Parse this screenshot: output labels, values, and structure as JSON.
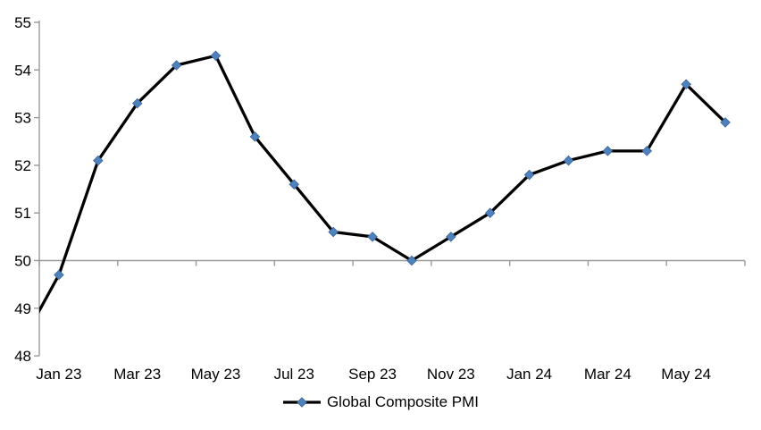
{
  "chart_data": {
    "type": "line",
    "title": "",
    "series": [
      {
        "name": "Global Composite PMI",
        "x": [
          "Dec 22",
          "Jan 23",
          "Feb 23",
          "Mar 23",
          "Apr 23",
          "May 23",
          "Jun 23",
          "Jul 23",
          "Aug 23",
          "Sep 23",
          "Oct 23",
          "Nov 23",
          "Dec 23",
          "Jan 24",
          "Feb 24",
          "Mar 24",
          "Apr 24",
          "May 24",
          "Jun 24"
        ],
        "values": [
          48.2,
          49.7,
          52.1,
          53.3,
          54.1,
          54.3,
          52.6,
          51.6,
          50.6,
          50.5,
          50.0,
          50.5,
          51.0,
          51.8,
          52.1,
          52.3,
          52.3,
          53.7,
          52.9
        ]
      }
    ],
    "x_tick_labels": [
      "Jan 23",
      "Mar 23",
      "May 23",
      "Jul 23",
      "Sep 23",
      "Nov 23",
      "Jan 24",
      "Mar 24",
      "May 24"
    ],
    "y_ticks": [
      55,
      54,
      53,
      52,
      51,
      50,
      49,
      48
    ],
    "ylim": [
      48,
      55
    ],
    "axis_cross_at": 50,
    "x_tick_interval": 2,
    "first_point_clipped": true,
    "gridlines": false,
    "marker": "diamond",
    "legend_position": "bottom-center"
  },
  "colors": {
    "series_line": "#000000",
    "marker_fill": "#4F81BD",
    "marker_edge": "#38659B",
    "axis_line": "#999999",
    "text": "#000000"
  }
}
